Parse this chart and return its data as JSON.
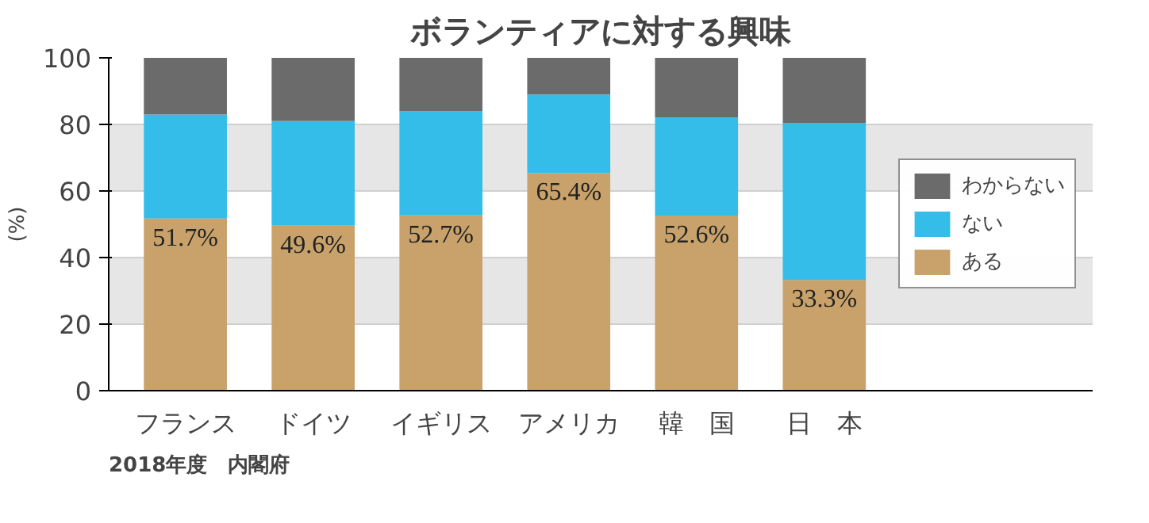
{
  "chart_data": {
    "type": "bar",
    "title": "ボランティアに対する興味",
    "ylabel": "(%)",
    "categories": [
      "フランス",
      "ドイツ",
      "イギリス",
      "アメリカ",
      "韓　国",
      "日　本"
    ],
    "stacked": true,
    "series": [
      {
        "name": "ある",
        "color": "#c8a26a",
        "values": [
          51.7,
          49.6,
          52.7,
          65.4,
          52.6,
          33.3
        ],
        "value_labels": [
          "51.7%",
          "49.6%",
          "52.7%",
          "65.4%",
          "52.6%",
          "33.3%"
        ]
      },
      {
        "name": "ない",
        "color": "#33bde8",
        "values": [
          31.3,
          31.4,
          31.3,
          23.6,
          29.4,
          47.2
        ]
      },
      {
        "name": "わからない",
        "color": "#6b6b6b",
        "values": [
          17.0,
          19.0,
          16.0,
          11.0,
          18.0,
          19.5
        ]
      }
    ],
    "ylim": [
      0,
      100
    ],
    "yticks": [
      0,
      20,
      40,
      60,
      80,
      100
    ],
    "grid": "y",
    "legend": "right",
    "annotations": [
      "2018年度　内閣府"
    ]
  }
}
